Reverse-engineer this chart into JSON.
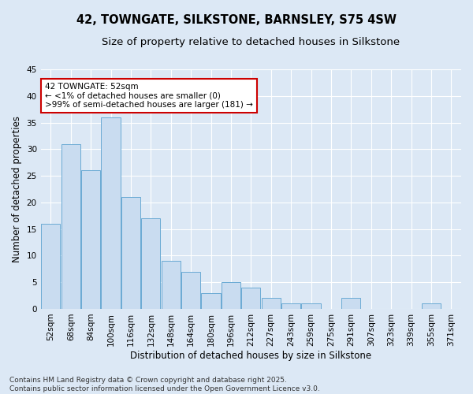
{
  "title_line1": "42, TOWNGATE, SILKSTONE, BARNSLEY, S75 4SW",
  "title_line2": "Size of property relative to detached houses in Silkstone",
  "xlabel": "Distribution of detached houses by size in Silkstone",
  "ylabel": "Number of detached properties",
  "categories": [
    "52sqm",
    "68sqm",
    "84sqm",
    "100sqm",
    "116sqm",
    "132sqm",
    "148sqm",
    "164sqm",
    "180sqm",
    "196sqm",
    "212sqm",
    "227sqm",
    "243sqm",
    "259sqm",
    "275sqm",
    "291sqm",
    "307sqm",
    "323sqm",
    "339sqm",
    "355sqm",
    "371sqm"
  ],
  "values": [
    16,
    31,
    26,
    36,
    21,
    17,
    9,
    7,
    3,
    5,
    4,
    2,
    1,
    1,
    0,
    2,
    0,
    0,
    0,
    1,
    0
  ],
  "bar_color": "#c9dcf0",
  "bar_edge_color": "#6aaad4",
  "background_color": "#dce8f5",
  "grid_color": "#ffffff",
  "ylim": [
    0,
    45
  ],
  "yticks": [
    0,
    5,
    10,
    15,
    20,
    25,
    30,
    35,
    40,
    45
  ],
  "annotation_text": "42 TOWNGATE: 52sqm\n← <1% of detached houses are smaller (0)\n>99% of semi-detached houses are larger (181) →",
  "annotation_box_color": "#ffffff",
  "annotation_box_edge": "#cc0000",
  "footer_line1": "Contains HM Land Registry data © Crown copyright and database right 2025.",
  "footer_line2": "Contains public sector information licensed under the Open Government Licence v3.0.",
  "title_fontsize": 10.5,
  "subtitle_fontsize": 9.5,
  "axis_label_fontsize": 8.5,
  "tick_fontsize": 7.5,
  "annotation_fontsize": 7.5,
  "footer_fontsize": 6.5
}
